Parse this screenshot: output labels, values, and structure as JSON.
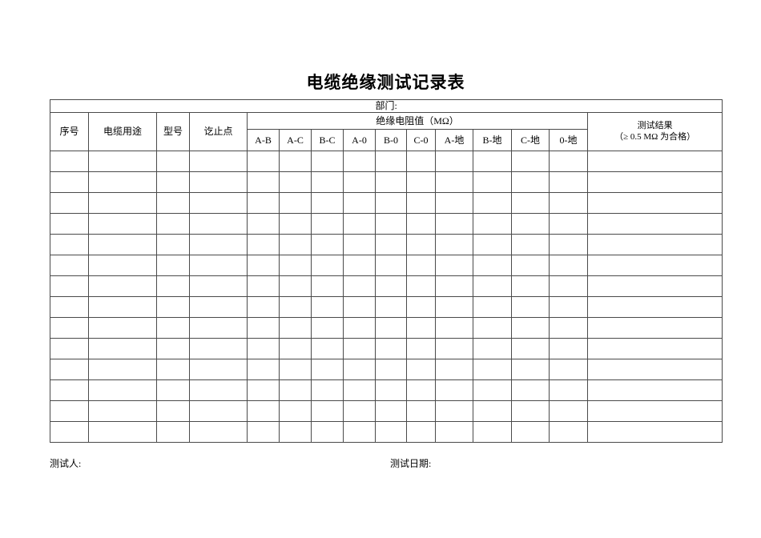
{
  "page": {
    "title": "电缆绝缘测试记录表",
    "background_color": "#ffffff",
    "border_color": "#4a4a4a",
    "text_color": "#000000"
  },
  "table": {
    "department_label": "部门:",
    "columns": {
      "serial": "序号",
      "usage": "电缆用途",
      "model": "型号",
      "endpoints": "讫止点",
      "resistance_group": "绝缘电阻值（MΩ）",
      "result_line1": "测试结果",
      "result_line2": "（≥ 0.5 MΩ 为合格）"
    },
    "pair_columns": [
      "A-B",
      "A-C",
      "B-C",
      "A-0",
      "B-0",
      "C-0",
      "A-地",
      "B-地",
      "C-地",
      "0-地"
    ],
    "empty_row_count": 14,
    "column_count": 15
  },
  "footer": {
    "tester_label": "测试人:",
    "date_label": "测试日期:"
  }
}
